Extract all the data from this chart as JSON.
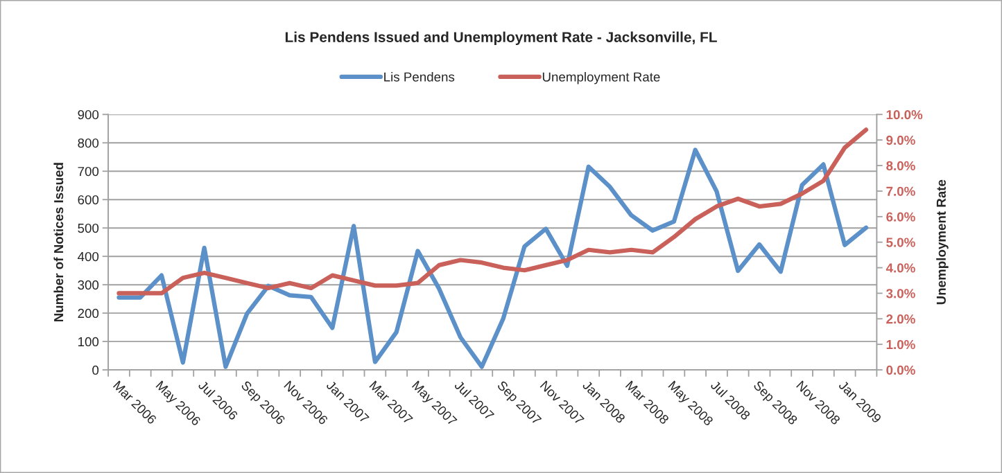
{
  "chart_data": {
    "type": "line",
    "title": "Lis Pendens Issued and Unemployment Rate - Jacksonville, FL",
    "ylabel": "Number of Notices Issued",
    "y2label": "Unemployment Rate",
    "categories": [
      "Mar 2006",
      null,
      "May 2006",
      null,
      "Jul 2006",
      null,
      "Sep 2006",
      null,
      "Nov 2006",
      null,
      "Jan 2007",
      null,
      "Mar 2007",
      null,
      "May 2007",
      null,
      "Jul 2007",
      null,
      "Sep 2007",
      null,
      "Nov 2007",
      null,
      "Jan 2008",
      null,
      "Mar 2008",
      null,
      "May 2008",
      null,
      "Jul 2008",
      null,
      "Sep 2008",
      null,
      "Nov 2008",
      null,
      "Jan 2009",
      null
    ],
    "series": [
      {
        "name": "Lis Pendens",
        "color": "#5b90c8",
        "values": [
          255,
          255,
          333,
          26,
          430,
          11,
          198,
          296,
          263,
          257,
          148,
          507,
          28,
          133,
          419,
          286,
          115,
          11,
          180,
          435,
          497,
          367,
          716,
          645,
          545,
          491,
          523,
          775,
          629,
          349,
          442,
          346,
          651,
          724,
          440,
          501
        ]
      },
      {
        "name": "Unemployment Rate",
        "color": "#c9605a",
        "axis": "y2",
        "values": [
          3.0,
          3.0,
          3.0,
          3.6,
          3.8,
          3.6,
          3.4,
          3.2,
          3.4,
          3.2,
          3.7,
          3.5,
          3.3,
          3.3,
          3.4,
          4.1,
          4.3,
          4.2,
          4.0,
          3.9,
          4.1,
          4.3,
          4.7,
          4.6,
          4.7,
          4.6,
          5.2,
          5.9,
          6.4,
          6.7,
          6.4,
          6.5,
          6.9,
          7.4,
          8.7,
          9.4
        ]
      }
    ],
    "ylim": [
      0,
      900
    ],
    "yticks": [
      0,
      100,
      200,
      300,
      400,
      500,
      600,
      700,
      800,
      900
    ],
    "y2lim": [
      0,
      10
    ],
    "y2ticks": [
      {
        "value": 0,
        "label": "0.0%"
      },
      {
        "value": 1,
        "label": "1.0%"
      },
      {
        "value": 2,
        "label": "2.0%"
      },
      {
        "value": 3,
        "label": "3.0%"
      },
      {
        "value": 4,
        "label": "4.0%"
      },
      {
        "value": 5,
        "label": "5.0%"
      },
      {
        "value": 6,
        "label": "6.0%"
      },
      {
        "value": 7,
        "label": "7.0%"
      },
      {
        "value": 8,
        "label": "8.0%"
      },
      {
        "value": 9,
        "label": "9.0%"
      },
      {
        "value": 10,
        "label": "10.0%"
      }
    ],
    "grid": "y",
    "legend": "top"
  }
}
